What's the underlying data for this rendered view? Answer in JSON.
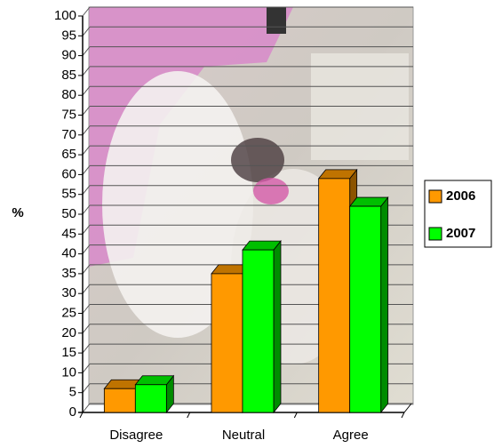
{
  "chart_data": {
    "type": "bar3d",
    "y_label": "%",
    "categories": [
      "Disagree",
      "Neutral",
      "Agree"
    ],
    "series": [
      {
        "name": "2006",
        "color": "#ff9900",
        "values": [
          6,
          35,
          59
        ]
      },
      {
        "name": "2007",
        "color": "#00ff00",
        "values": [
          7,
          41,
          52
        ]
      }
    ],
    "ylim": [
      0,
      100
    ],
    "yticks": [
      0,
      5,
      10,
      15,
      20,
      25,
      30,
      35,
      40,
      45,
      50,
      55,
      60,
      65,
      70,
      75,
      80,
      85,
      90,
      95,
      100
    ],
    "grid": true,
    "legend": "right"
  }
}
